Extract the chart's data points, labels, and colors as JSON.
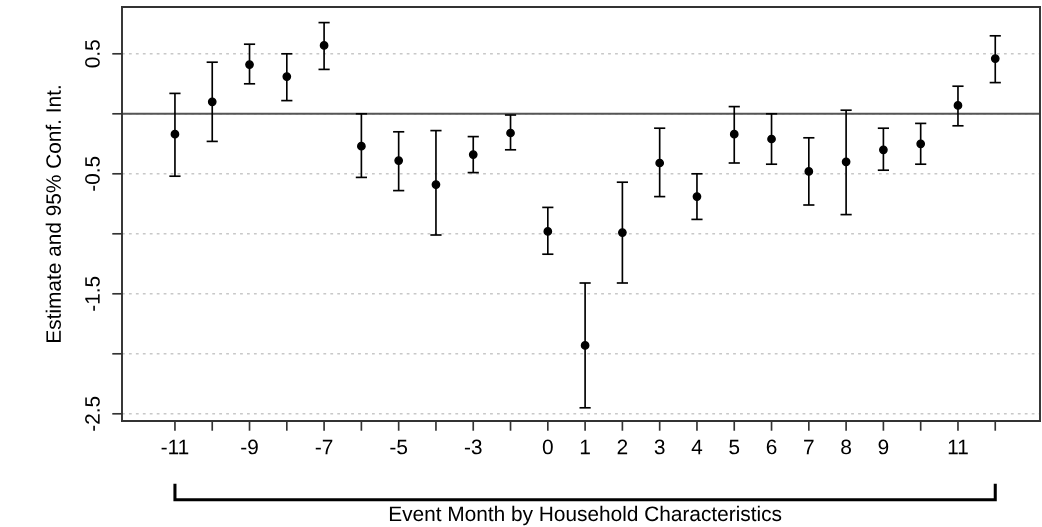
{
  "chart_data": {
    "type": "scatter",
    "xlabel": "Event Month by Household Characteristics",
    "ylabel": "Estimate and 95% Conf. Int.",
    "categories": [
      "-11",
      null,
      "-9",
      null,
      "-7",
      null,
      "-5",
      null,
      "-3",
      null,
      "0",
      "1",
      "2",
      "3",
      "4",
      "5",
      "6",
      "7",
      "8",
      "9",
      null,
      "11",
      null
    ],
    "series": [
      {
        "color": "#000000",
        "values": [
          -0.17,
          0.1,
          0.41,
          0.31,
          0.57,
          -0.27,
          -0.39,
          -0.59,
          -0.34,
          -0.16,
          -0.98,
          -1.93,
          -0.99,
          -0.41,
          -0.69,
          -0.17,
          -0.21,
          -0.48,
          -0.4,
          -0.3,
          -0.25,
          0.07,
          0.46
        ],
        "errors": [
          [
            -0.52,
            0.17
          ],
          [
            -0.23,
            0.43
          ],
          [
            0.25,
            0.58
          ],
          [
            0.11,
            0.5
          ],
          [
            0.37,
            0.76
          ],
          [
            -0.53,
            0.0
          ],
          [
            -0.64,
            -0.15
          ],
          [
            -1.01,
            -0.14
          ],
          [
            -0.49,
            -0.19
          ],
          [
            -0.3,
            -0.01
          ],
          [
            -1.17,
            -0.78
          ],
          [
            -2.45,
            -1.41
          ],
          [
            -1.41,
            -0.57
          ],
          [
            -0.69,
            -0.12
          ],
          [
            -0.88,
            -0.5
          ],
          [
            -0.41,
            0.06
          ],
          [
            -0.42,
            0.0
          ],
          [
            -0.76,
            -0.2
          ],
          [
            -0.84,
            0.03
          ],
          [
            -0.47,
            -0.12
          ],
          [
            -0.42,
            -0.08
          ],
          [
            -0.1,
            0.23
          ],
          [
            0.26,
            0.65
          ]
        ]
      }
    ],
    "ylim": [
      -2.56,
      0.89
    ],
    "yticks": [
      0.5,
      {
        "value": 0,
        "label": null
      },
      -0.5,
      {
        "value": -1,
        "label": null
      },
      -1.5,
      {
        "value": -2,
        "label": null
      },
      -2.5
    ],
    "ref_lines": [
      {
        "axis": "y",
        "value": 0,
        "color": "#555555",
        "line_style": "solid"
      }
    ],
    "grid": "y",
    "marker": "circle"
  }
}
